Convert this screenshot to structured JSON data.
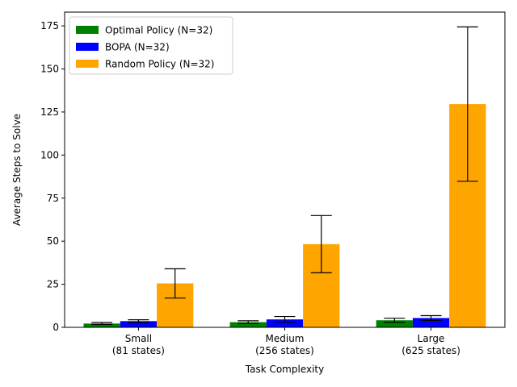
{
  "chart_data": {
    "type": "bar",
    "title": "",
    "xlabel": "Task Complexity",
    "ylabel": "Average Steps to Solve",
    "categories": [
      [
        "Small",
        "(81 states)"
      ],
      [
        "Medium",
        "(256 states)"
      ],
      [
        "Large",
        "(625 states)"
      ]
    ],
    "ylim": [
      0,
      183
    ],
    "yticks": [
      0,
      25,
      50,
      75,
      100,
      125,
      150,
      175
    ],
    "grid": false,
    "legend_position": "upper-left",
    "series": [
      {
        "name": "Optimal Policy (N=32)",
        "color": "#008000",
        "values": [
          2.2,
          3.0,
          4.1
        ],
        "errors": [
          0.6,
          0.8,
          1.2
        ]
      },
      {
        "name": "BOPA (N=32)",
        "color": "#0000ff",
        "values": [
          3.6,
          4.6,
          5.4
        ],
        "errors": [
          0.8,
          1.7,
          1.4
        ]
      },
      {
        "name": "Random Policy (N=32)",
        "color": "#ffa500",
        "values": [
          25.5,
          48.3,
          129.6
        ],
        "errors": [
          8.5,
          16.6,
          44.8
        ]
      }
    ]
  }
}
